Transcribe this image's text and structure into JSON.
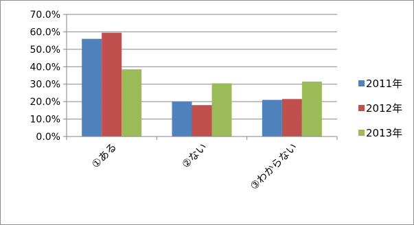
{
  "chart_data": {
    "type": "bar",
    "categories": [
      "①ある",
      "②ない",
      "③わからない"
    ],
    "series": [
      {
        "name": "2011年",
        "color": "#4f81bd",
        "values": [
          56.0,
          20.0,
          21.0
        ]
      },
      {
        "name": "2012年",
        "color": "#c0504d",
        "values": [
          59.5,
          18.0,
          21.5
        ]
      },
      {
        "name": "2013年",
        "color": "#9bbb59",
        "values": [
          38.5,
          30.5,
          31.5
        ]
      }
    ],
    "ylim": [
      0,
      70
    ],
    "yticks": [
      "0.0%",
      "10.0%",
      "20.0%",
      "30.0%",
      "40.0%",
      "50.0%",
      "60.0%",
      "70.0%"
    ],
    "grid": true,
    "legend_position": "right"
  }
}
